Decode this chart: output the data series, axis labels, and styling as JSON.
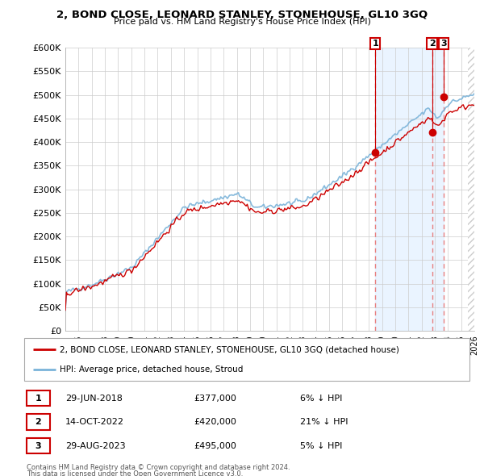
{
  "title": "2, BOND CLOSE, LEONARD STANLEY, STONEHOUSE, GL10 3GQ",
  "subtitle": "Price paid vs. HM Land Registry's House Price Index (HPI)",
  "ylabel_ticks": [
    "£0",
    "£50K",
    "£100K",
    "£150K",
    "£200K",
    "£250K",
    "£300K",
    "£350K",
    "£400K",
    "£450K",
    "£500K",
    "£550K",
    "£600K"
  ],
  "ytick_values": [
    0,
    50000,
    100000,
    150000,
    200000,
    250000,
    300000,
    350000,
    400000,
    450000,
    500000,
    550000,
    600000
  ],
  "hpi_color": "#7ab3d9",
  "price_color": "#cc0000",
  "dashed_color": "#e88080",
  "shade_color": "#ddeeff",
  "annotation_box_color": "#cc0000",
  "sale1_t": 2018.5,
  "sale2_t": 2022.79,
  "sale3_t": 2023.66,
  "sale1_p": 377000,
  "sale2_p": 420000,
  "sale3_p": 495000,
  "sale1": {
    "date_label": "29-JUN-2018",
    "price": 377000,
    "pct": "6% ↓ HPI",
    "marker_num": 1
  },
  "sale2": {
    "date_label": "14-OCT-2022",
    "price": 420000,
    "pct": "21% ↓ HPI",
    "marker_num": 2
  },
  "sale3": {
    "date_label": "29-AUG-2023",
    "price": 495000,
    "pct": "5% ↓ HPI",
    "marker_num": 3
  },
  "legend_line1": "2, BOND CLOSE, LEONARD STANLEY, STONEHOUSE, GL10 3GQ (detached house)",
  "legend_line2": "HPI: Average price, detached house, Stroud",
  "footnote1": "Contains HM Land Registry data © Crown copyright and database right 2024.",
  "footnote2": "This data is licensed under the Open Government Licence v3.0.",
  "background_color": "#ffffff",
  "grid_color": "#cccccc",
  "xlim_start": 1995,
  "xlim_end": 2026
}
